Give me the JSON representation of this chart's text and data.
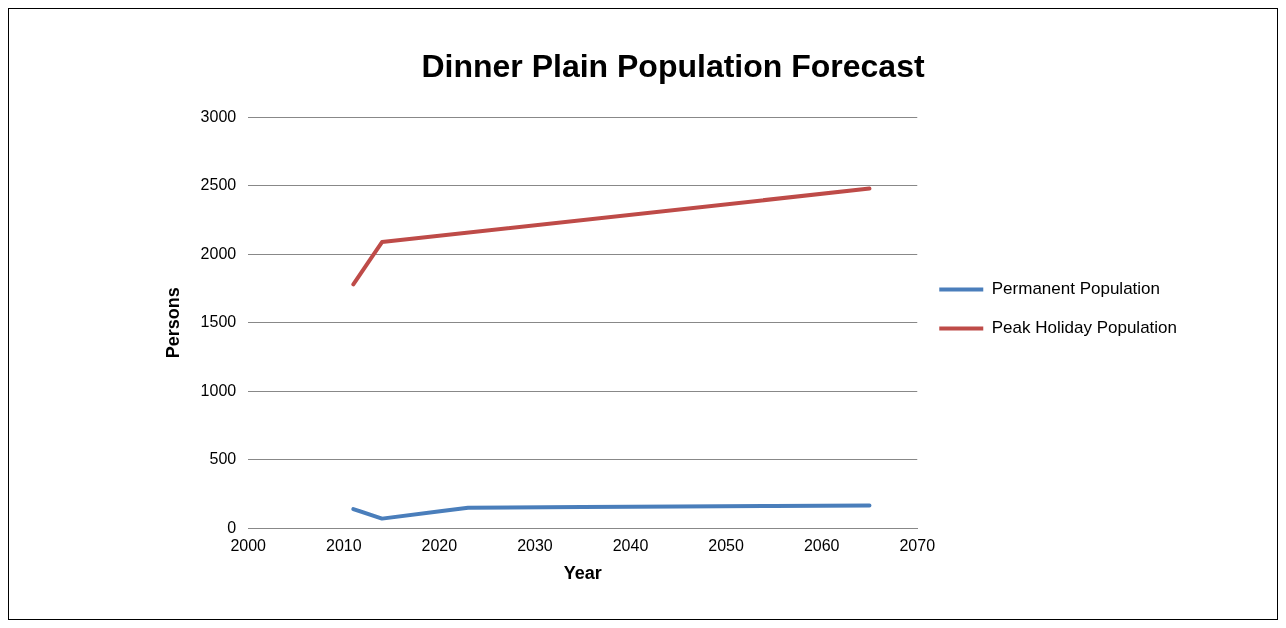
{
  "chart_data": {
    "type": "line",
    "title": "Dinner Plain Population Forecast",
    "xlabel": "Year",
    "ylabel": "Persons",
    "xlim": [
      2000,
      2070
    ],
    "xticks": [
      2000,
      2010,
      2020,
      2030,
      2040,
      2050,
      2060,
      2070
    ],
    "ylim": [
      0,
      3000
    ],
    "yticks": [
      0,
      500,
      1000,
      1500,
      2000,
      2500,
      3000
    ],
    "grid": "y",
    "legend": "right",
    "marker": "none",
    "line_style": "solid",
    "series": [
      {
        "name": "Permanent Population",
        "color": "#4a7ebb",
        "x": [
          2011,
          2014,
          2023,
          2035,
          2045,
          2055,
          2065
        ],
        "values": [
          140,
          70,
          150,
          155,
          158,
          162,
          165
        ]
      },
      {
        "name": "Peak Holiday Population",
        "color": "#be4b48",
        "x": [
          2011,
          2014,
          2065
        ],
        "values": [
          1780,
          2090,
          2480
        ]
      }
    ]
  }
}
